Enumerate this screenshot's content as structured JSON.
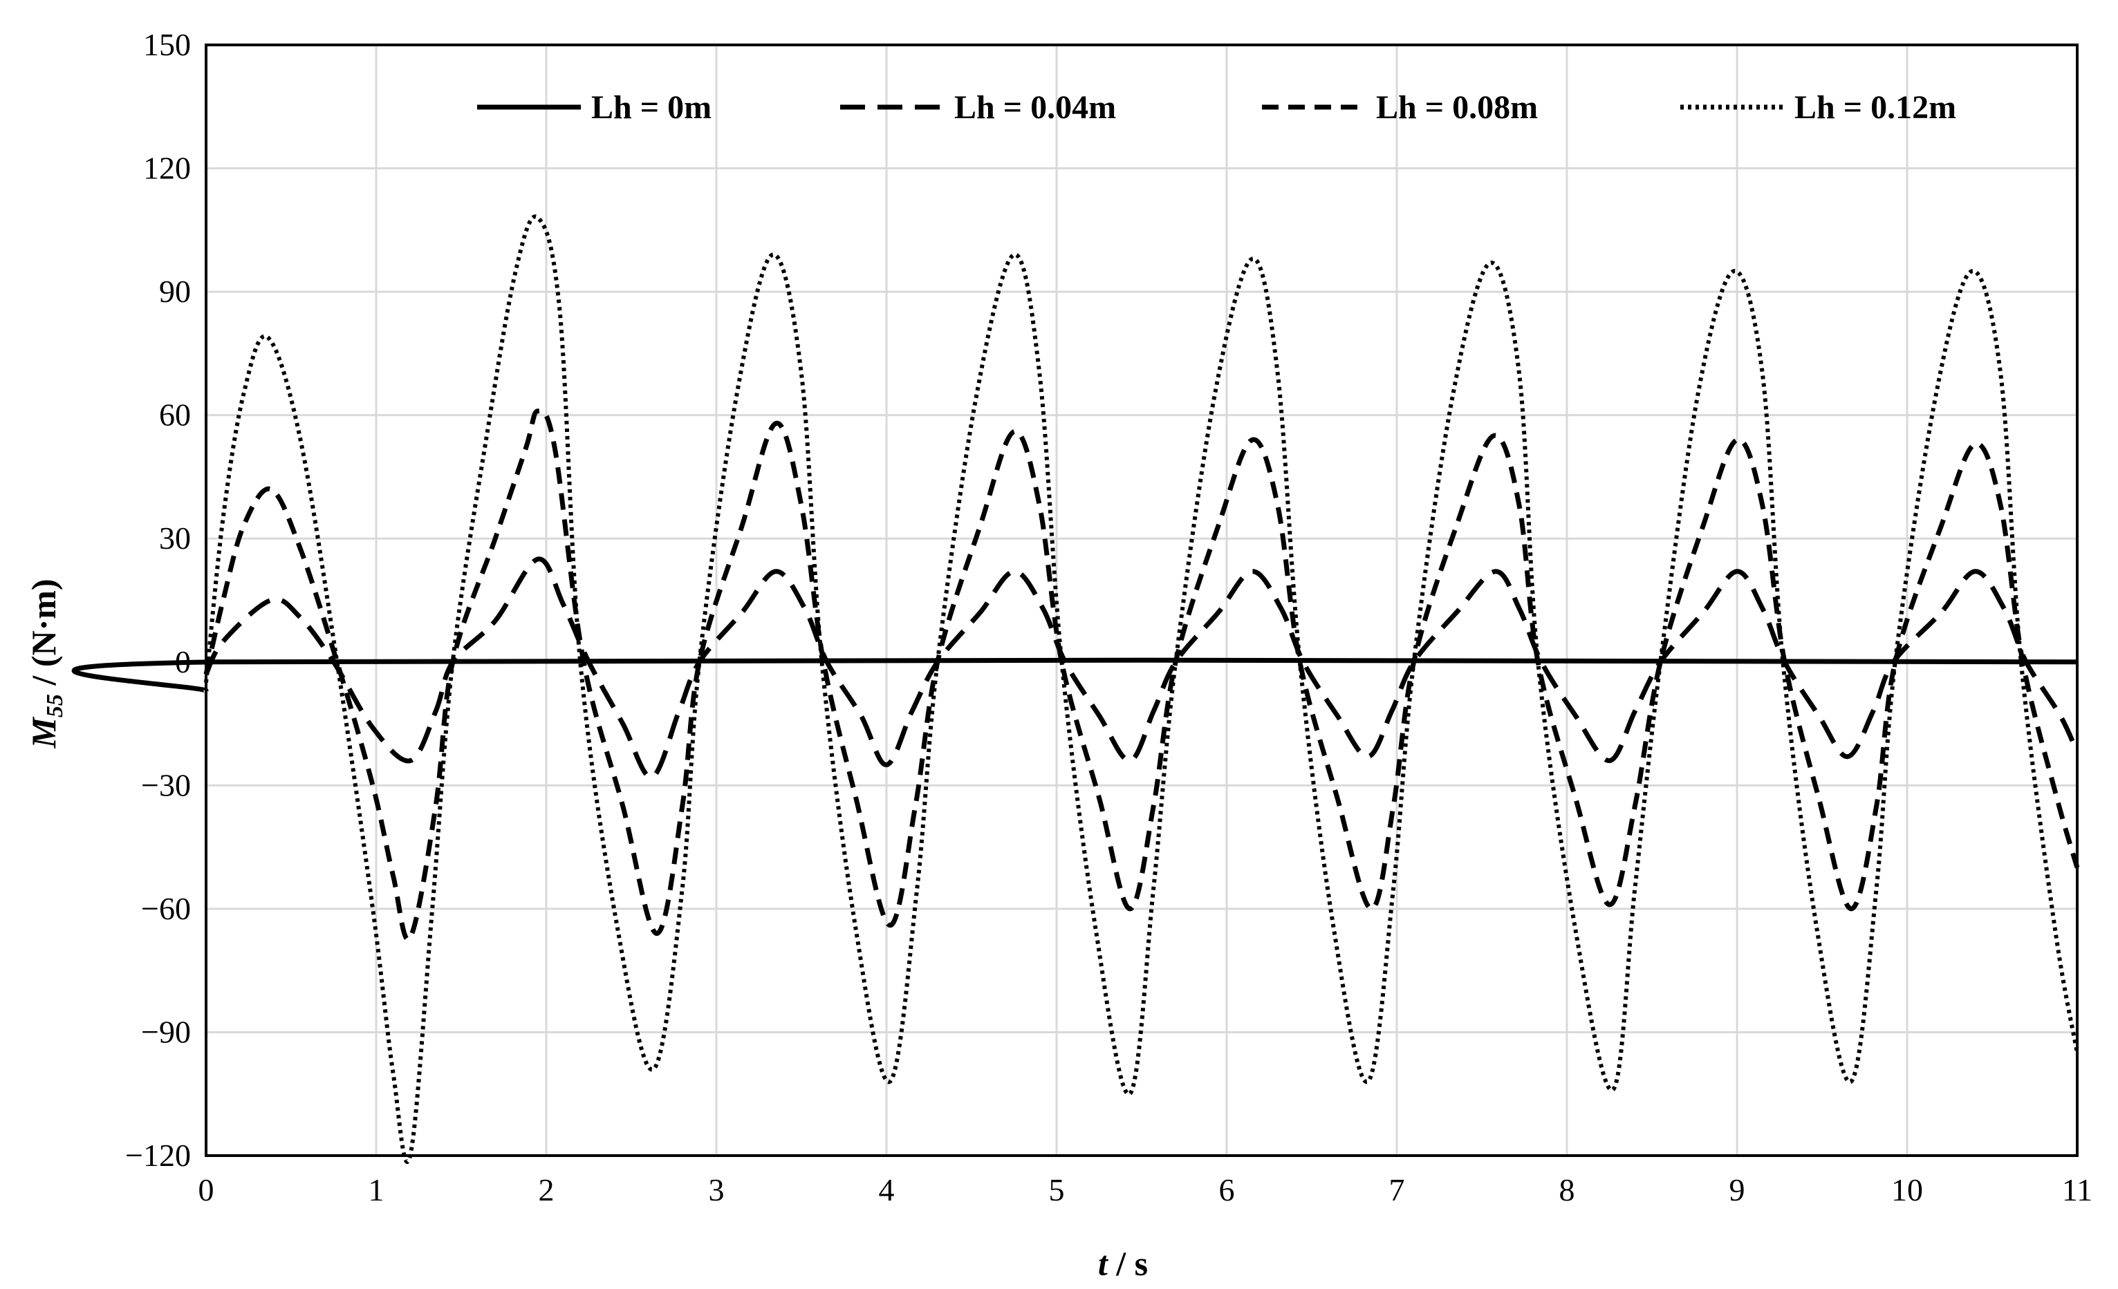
{
  "chart_data": {
    "type": "line",
    "xlabel": {
      "var": "t",
      "unit": " / s"
    },
    "ylabel": {
      "var": "M",
      "sub": "55",
      "unit": " / (N·m)"
    },
    "xlim": [
      0,
      11
    ],
    "ylim": [
      -120,
      150
    ],
    "xticks": [
      0,
      1,
      2,
      3,
      4,
      5,
      6,
      7,
      8,
      9,
      10,
      11
    ],
    "yticks": [
      -120,
      -90,
      -60,
      -30,
      0,
      30,
      60,
      90,
      120,
      150
    ],
    "ytick_labels": [
      "−120",
      "−90",
      "−60",
      "−30",
      "0",
      "30",
      "60",
      "90",
      "120",
      "150"
    ],
    "grid": true,
    "legend_position": "top",
    "series": [
      {
        "name": "Lh = 0m",
        "style": "solid",
        "color": "#000000",
        "points": [
          [
            0,
            -7
          ],
          [
            0.05,
            0
          ],
          [
            11,
            0
          ]
        ]
      },
      {
        "name": "Lh = 0.04m",
        "style": "dashed",
        "color": "#000000",
        "points": [
          [
            0,
            -3
          ],
          [
            0.1,
            5
          ],
          [
            0.38,
            15
          ],
          [
            0.55,
            11
          ],
          [
            0.75,
            0
          ],
          [
            0.98,
            -16
          ],
          [
            1.2,
            -24
          ],
          [
            1.35,
            -12
          ],
          [
            1.45,
            0
          ],
          [
            1.7,
            10
          ],
          [
            1.95,
            25
          ],
          [
            2.1,
            14
          ],
          [
            2.25,
            0
          ],
          [
            2.45,
            -15
          ],
          [
            2.62,
            -28
          ],
          [
            2.78,
            -12
          ],
          [
            2.9,
            0
          ],
          [
            3.15,
            12
          ],
          [
            3.35,
            22
          ],
          [
            3.52,
            13
          ],
          [
            3.65,
            0
          ],
          [
            3.85,
            -13
          ],
          [
            4.0,
            -25
          ],
          [
            4.15,
            -12
          ],
          [
            4.3,
            0
          ],
          [
            4.55,
            12
          ],
          [
            4.75,
            22
          ],
          [
            4.92,
            13
          ],
          [
            5.05,
            0
          ],
          [
            5.25,
            -13
          ],
          [
            5.43,
            -24
          ],
          [
            5.57,
            -12
          ],
          [
            5.7,
            0
          ],
          [
            5.95,
            12
          ],
          [
            6.15,
            22
          ],
          [
            6.32,
            13
          ],
          [
            6.45,
            0
          ],
          [
            6.65,
            -13
          ],
          [
            6.83,
            -23
          ],
          [
            6.97,
            -12
          ],
          [
            7.1,
            0
          ],
          [
            7.35,
            12
          ],
          [
            7.58,
            22
          ],
          [
            7.72,
            13
          ],
          [
            7.85,
            0
          ],
          [
            8.05,
            -13
          ],
          [
            8.25,
            -24
          ],
          [
            8.4,
            -12
          ],
          [
            8.55,
            0
          ],
          [
            8.8,
            12
          ],
          [
            9.0,
            22
          ],
          [
            9.15,
            13
          ],
          [
            9.28,
            0
          ],
          [
            9.48,
            -13
          ],
          [
            9.65,
            -23
          ],
          [
            9.8,
            -12
          ],
          [
            9.92,
            0
          ],
          [
            10.2,
            12
          ],
          [
            10.4,
            22
          ],
          [
            10.57,
            13
          ],
          [
            10.7,
            0
          ],
          [
            10.9,
            -13
          ],
          [
            11.0,
            -22
          ]
        ]
      },
      {
        "name": "Lh = 0.08m",
        "style": "dashed",
        "color": "#000000",
        "points": [
          [
            0,
            -3
          ],
          [
            0.1,
            15
          ],
          [
            0.22,
            33
          ],
          [
            0.38,
            42
          ],
          [
            0.55,
            28
          ],
          [
            0.77,
            0
          ],
          [
            0.98,
            -30
          ],
          [
            1.1,
            -52
          ],
          [
            1.2,
            -67
          ],
          [
            1.35,
            -35
          ],
          [
            1.45,
            0
          ],
          [
            1.7,
            30
          ],
          [
            1.88,
            52
          ],
          [
            1.95,
            61
          ],
          [
            2.05,
            52
          ],
          [
            2.22,
            0
          ],
          [
            2.45,
            -35
          ],
          [
            2.65,
            -66
          ],
          [
            2.8,
            -35
          ],
          [
            2.9,
            0
          ],
          [
            3.15,
            33
          ],
          [
            3.35,
            58
          ],
          [
            3.5,
            38
          ],
          [
            3.63,
            0
          ],
          [
            3.82,
            -33
          ],
          [
            4.02,
            -64
          ],
          [
            4.17,
            -35
          ],
          [
            4.3,
            0
          ],
          [
            4.55,
            33
          ],
          [
            4.75,
            56
          ],
          [
            4.9,
            38
          ],
          [
            5.03,
            0
          ],
          [
            5.25,
            -33
          ],
          [
            5.43,
            -60
          ],
          [
            5.57,
            -35
          ],
          [
            5.7,
            0
          ],
          [
            5.95,
            33
          ],
          [
            6.15,
            54
          ],
          [
            6.3,
            38
          ],
          [
            6.43,
            0
          ],
          [
            6.65,
            -33
          ],
          [
            6.85,
            -60
          ],
          [
            6.98,
            -35
          ],
          [
            7.1,
            0
          ],
          [
            7.35,
            33
          ],
          [
            7.57,
            55
          ],
          [
            7.72,
            38
          ],
          [
            7.83,
            0
          ],
          [
            8.05,
            -33
          ],
          [
            8.25,
            -59
          ],
          [
            8.4,
            -35
          ],
          [
            8.55,
            0
          ],
          [
            8.8,
            33
          ],
          [
            9.0,
            54
          ],
          [
            9.15,
            38
          ],
          [
            9.28,
            0
          ],
          [
            9.48,
            -33
          ],
          [
            9.67,
            -60
          ],
          [
            9.82,
            -35
          ],
          [
            9.93,
            0
          ],
          [
            10.2,
            33
          ],
          [
            10.4,
            53
          ],
          [
            10.55,
            38
          ],
          [
            10.68,
            0
          ],
          [
            10.88,
            -33
          ],
          [
            11.0,
            -50
          ]
        ]
      },
      {
        "name": "Lh = 0.12m",
        "style": "dotted",
        "color": "#000000",
        "points": [
          [
            0,
            -5
          ],
          [
            0.1,
            35
          ],
          [
            0.22,
            65
          ],
          [
            0.36,
            79
          ],
          [
            0.55,
            55
          ],
          [
            0.77,
            0
          ],
          [
            0.98,
            -60
          ],
          [
            1.1,
            -100
          ],
          [
            1.2,
            -120
          ],
          [
            1.33,
            -60
          ],
          [
            1.45,
            0
          ],
          [
            1.65,
            55
          ],
          [
            1.82,
            95
          ],
          [
            1.95,
            108
          ],
          [
            2.08,
            85
          ],
          [
            2.2,
            0
          ],
          [
            2.42,
            -65
          ],
          [
            2.63,
            -99
          ],
          [
            2.8,
            -55
          ],
          [
            2.9,
            0
          ],
          [
            3.12,
            65
          ],
          [
            3.33,
            99
          ],
          [
            3.5,
            70
          ],
          [
            3.62,
            0
          ],
          [
            3.82,
            -65
          ],
          [
            4.02,
            -102
          ],
          [
            4.18,
            -55
          ],
          [
            4.3,
            0
          ],
          [
            4.53,
            65
          ],
          [
            4.75,
            99
          ],
          [
            4.9,
            70
          ],
          [
            5.03,
            0
          ],
          [
            5.23,
            -65
          ],
          [
            5.43,
            -105
          ],
          [
            5.57,
            -55
          ],
          [
            5.7,
            0
          ],
          [
            5.93,
            65
          ],
          [
            6.15,
            98
          ],
          [
            6.3,
            70
          ],
          [
            6.43,
            0
          ],
          [
            6.63,
            -65
          ],
          [
            6.83,
            -102
          ],
          [
            6.98,
            -55
          ],
          [
            7.1,
            0
          ],
          [
            7.33,
            65
          ],
          [
            7.55,
            97
          ],
          [
            7.72,
            70
          ],
          [
            7.83,
            0
          ],
          [
            8.05,
            -65
          ],
          [
            8.27,
            -104
          ],
          [
            8.4,
            -55
          ],
          [
            8.55,
            0
          ],
          [
            8.77,
            65
          ],
          [
            8.98,
            95
          ],
          [
            9.15,
            70
          ],
          [
            9.27,
            0
          ],
          [
            9.47,
            -65
          ],
          [
            9.67,
            -102
          ],
          [
            9.82,
            -55
          ],
          [
            9.93,
            0
          ],
          [
            10.17,
            65
          ],
          [
            10.38,
            95
          ],
          [
            10.55,
            70
          ],
          [
            10.67,
            0
          ],
          [
            10.87,
            -65
          ],
          [
            11.0,
            -95
          ]
        ]
      }
    ]
  }
}
